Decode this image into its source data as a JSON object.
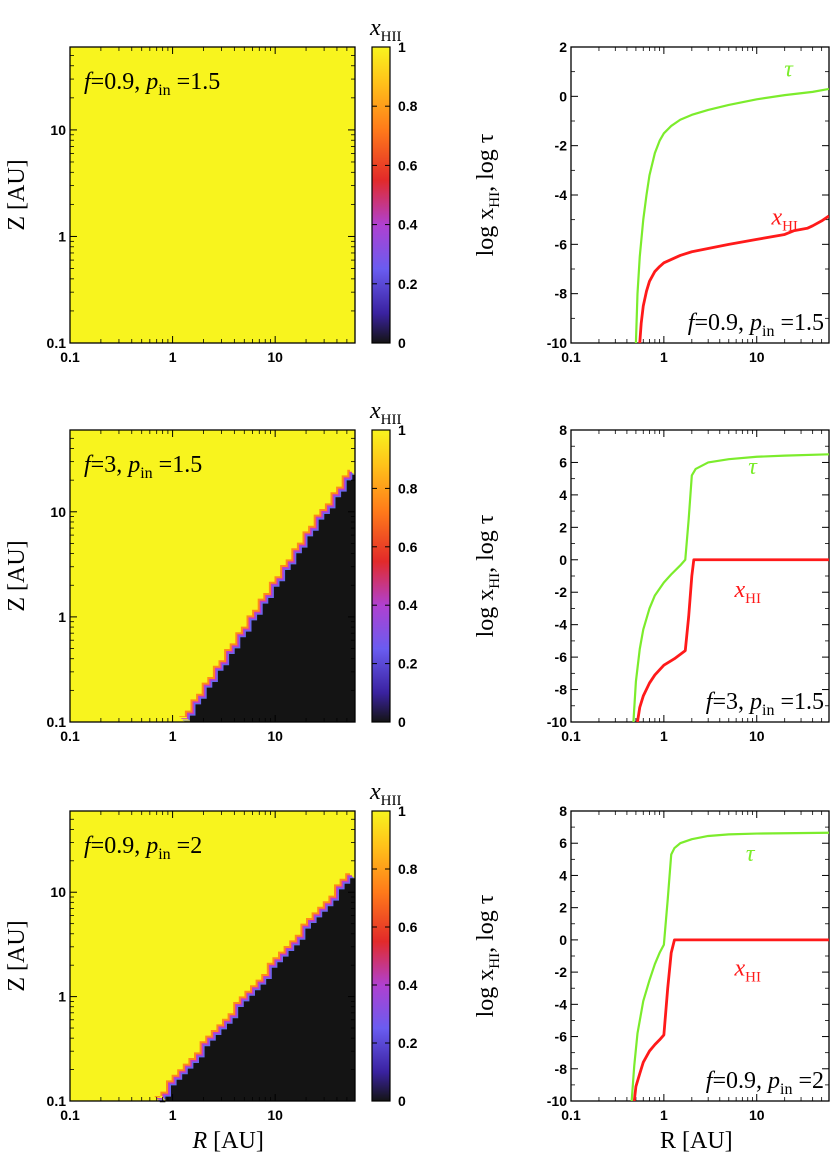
{
  "chart_data": [
    {
      "type": "heatmap",
      "panel": "left-top",
      "annotation": {
        "f_label": "f",
        "f_value": "=0.9, ",
        "p_label": "p",
        "p_sub": "in",
        "p_value": " =1.5"
      },
      "xlabel": "",
      "ylabel": "Z [AU]",
      "xlim": [
        0.1,
        60
      ],
      "ylim": [
        0.1,
        60
      ],
      "xscale": "log",
      "yscale": "log",
      "xticks": [
        "0.1",
        "1",
        "10"
      ],
      "yticks": [
        "0.1",
        "1",
        "10"
      ],
      "colorbar": {
        "label": "x",
        "label_sub": "HII",
        "ticks": [
          "1",
          "0.8",
          "0.6",
          "0.4",
          "0.2",
          "0"
        ]
      },
      "boundary": {
        "type": "none",
        "value_above": 1,
        "value_below": 1
      }
    },
    {
      "type": "heatmap",
      "panel": "left-middle",
      "annotation": {
        "f_label": "f",
        "f_value": "=3, ",
        "p_label": "p",
        "p_sub": "in",
        "p_value": " =1.5"
      },
      "xlabel": "",
      "ylabel": "Z [AU]",
      "xlim": [
        0.1,
        60
      ],
      "ylim": [
        0.1,
        60
      ],
      "xscale": "log",
      "yscale": "log",
      "xticks": [
        "0.1",
        "1",
        "10"
      ],
      "yticks": [
        "0.1",
        "1",
        "10"
      ],
      "colorbar": {
        "label": "x",
        "label_sub": "HII",
        "ticks": [
          "1",
          "0.8",
          "0.6",
          "0.4",
          "0.2",
          "0"
        ]
      },
      "boundary": {
        "type": "power",
        "r0": 1.3,
        "z0": 0.1,
        "slope": 1.45,
        "value_above": 1,
        "value_below": 0
      }
    },
    {
      "type": "heatmap",
      "panel": "left-bottom",
      "annotation": {
        "f_label": "f",
        "f_value": "=0.9, ",
        "p_label": "p",
        "p_sub": "in",
        "p_value": " =2"
      },
      "xlabel": "R [AU]",
      "ylabel": "Z [AU]",
      "xlim": [
        0.1,
        60
      ],
      "ylim": [
        0.1,
        60
      ],
      "xscale": "log",
      "yscale": "log",
      "xticks": [
        "0.1",
        "1",
        "10"
      ],
      "yticks": [
        "0.1",
        "1",
        "10"
      ],
      "colorbar": {
        "label": "x",
        "label_sub": "HII",
        "ticks": [
          "1",
          "0.8",
          "0.6",
          "0.4",
          "0.2",
          "0"
        ]
      },
      "boundary": {
        "type": "power",
        "r0": 0.75,
        "z0": 0.1,
        "slope": 1.15,
        "value_above": 1,
        "value_below": 0
      }
    },
    {
      "type": "line",
      "panel": "right-top",
      "annotation": {
        "f_label": "f",
        "f_value": "=0.9, ",
        "p_label": "p",
        "p_sub": "in",
        "p_value": " =1.5"
      },
      "xlabel": "",
      "ylabel": "log x",
      "ylabel_sub": "HI",
      "ylabel_tail": ", log τ",
      "xlim": [
        0.1,
        60
      ],
      "ylim": [
        -10,
        2
      ],
      "xscale": "log",
      "xticks": [
        "0.1",
        "1",
        "10"
      ],
      "yticks": [
        "2",
        "0",
        "-2",
        "-4",
        "-6",
        "-8",
        "-10"
      ],
      "series": [
        {
          "name": "τ",
          "color": "#7cec2c",
          "x": [
            0.5,
            0.52,
            0.55,
            0.6,
            0.65,
            0.7,
            0.8,
            0.9,
            1.0,
            1.2,
            1.5,
            2,
            3,
            5,
            10,
            20,
            40,
            60
          ],
          "y": [
            -10,
            -8,
            -6.5,
            -5,
            -4,
            -3.2,
            -2.3,
            -1.8,
            -1.5,
            -1.2,
            -0.95,
            -0.75,
            -0.55,
            -0.35,
            -0.12,
            0.05,
            0.18,
            0.3
          ]
        },
        {
          "name": "x",
          "name_sub": "HI",
          "color": "#ff1a1a",
          "x": [
            0.55,
            0.57,
            0.6,
            0.65,
            0.7,
            0.8,
            0.9,
            1.0,
            1.5,
            2,
            5,
            10,
            20,
            25,
            35,
            40,
            50,
            60
          ],
          "y": [
            -10,
            -9.2,
            -8.5,
            -7.9,
            -7.5,
            -7.1,
            -6.9,
            -6.75,
            -6.45,
            -6.3,
            -6.0,
            -5.8,
            -5.6,
            -5.45,
            -5.35,
            -5.25,
            -5.05,
            -4.85
          ]
        }
      ],
      "series_labels": [
        {
          "text": "τ",
          "sub": "",
          "color": "#7cec2c",
          "x": 22,
          "y": 0.8
        },
        {
          "text": "x",
          "sub": "HI",
          "color": "#ff1a1a",
          "x": 20,
          "y": -5.2
        }
      ]
    },
    {
      "type": "line",
      "panel": "right-middle",
      "annotation": {
        "f_label": "f",
        "f_value": "=3, ",
        "p_label": "p",
        "p_sub": "in",
        "p_value": " =1.5"
      },
      "xlabel": "",
      "ylabel": "log x",
      "ylabel_sub": "HI",
      "ylabel_tail": ", log τ",
      "xlim": [
        0.1,
        60
      ],
      "ylim": [
        -10,
        8
      ],
      "xscale": "log",
      "xticks": [
        "0.1",
        "1",
        "10"
      ],
      "yticks": [
        "8",
        "6",
        "4",
        "2",
        "0",
        "-2",
        "-4",
        "-6",
        "-8",
        "-10"
      ],
      "series": [
        {
          "name": "τ",
          "color": "#7cec2c",
          "x": [
            0.47,
            0.5,
            0.55,
            0.6,
            0.7,
            0.8,
            1.0,
            1.2,
            1.5,
            1.7,
            1.85,
            2.0,
            2.2,
            3,
            5,
            10,
            20,
            60
          ],
          "y": [
            -10,
            -7.5,
            -5.5,
            -4.3,
            -3.0,
            -2.2,
            -1.4,
            -0.9,
            -0.35,
            0,
            2.5,
            5.2,
            5.6,
            6.0,
            6.2,
            6.35,
            6.42,
            6.5
          ]
        },
        {
          "name": "x",
          "name_sub": "HI",
          "color": "#ff1a1a",
          "x": [
            0.52,
            0.55,
            0.6,
            0.7,
            0.8,
            1.0,
            1.3,
            1.7,
            1.85,
            2.0,
            2.1,
            5,
            10,
            20,
            60
          ],
          "y": [
            -10,
            -9.1,
            -8.4,
            -7.6,
            -7.1,
            -6.5,
            -6.1,
            -5.6,
            -3.5,
            -1.0,
            0,
            0,
            0,
            0,
            0
          ]
        }
      ],
      "series_labels": [
        {
          "text": "τ",
          "sub": "",
          "color": "#7cec2c",
          "x": 9,
          "y": 5.3
        },
        {
          "text": "x",
          "sub": "HI",
          "color": "#ff1a1a",
          "x": 8,
          "y": -2.3
        }
      ]
    },
    {
      "type": "line",
      "panel": "right-bottom",
      "annotation": {
        "f_label": "f",
        "f_value": "=0.9, ",
        "p_label": "p",
        "p_sub": "in",
        "p_value": " =2"
      },
      "xlabel": "R [AU]",
      "ylabel": "log x",
      "ylabel_sub": "HI",
      "ylabel_tail": ", log τ",
      "xlim": [
        0.1,
        60
      ],
      "ylim": [
        -10,
        8
      ],
      "xscale": "log",
      "xticks": [
        "0.1",
        "1",
        "10"
      ],
      "yticks": [
        "8",
        "6",
        "4",
        "2",
        "0",
        "-2",
        "-4",
        "-6",
        "-8",
        "-10"
      ],
      "series": [
        {
          "name": "τ",
          "color": "#7cec2c",
          "x": [
            0.45,
            0.48,
            0.52,
            0.6,
            0.7,
            0.8,
            0.9,
            1.0,
            1.1,
            1.2,
            1.3,
            1.5,
            2,
            3,
            5,
            10,
            20,
            60
          ],
          "y": [
            -10,
            -7.8,
            -5.8,
            -3.8,
            -2.5,
            -1.5,
            -0.8,
            -0.3,
            2.5,
            5.3,
            5.7,
            6.0,
            6.25,
            6.45,
            6.55,
            6.6,
            6.62,
            6.65
          ]
        },
        {
          "name": "x",
          "name_sub": "HI",
          "color": "#ff1a1a",
          "x": [
            0.48,
            0.5,
            0.55,
            0.6,
            0.7,
            0.8,
            0.9,
            1.0,
            1.1,
            1.2,
            1.3,
            3,
            10,
            60
          ],
          "y": [
            -10,
            -9.1,
            -8.3,
            -7.6,
            -6.9,
            -6.5,
            -6.2,
            -5.9,
            -3.0,
            -0.8,
            0,
            0,
            0,
            0
          ]
        }
      ],
      "series_labels": [
        {
          "text": "τ",
          "sub": "",
          "color": "#7cec2c",
          "x": 8.5,
          "y": 4.9
        },
        {
          "text": "x",
          "sub": "HI",
          "color": "#ff1a1a",
          "x": 8,
          "y": -2.2
        }
      ]
    }
  ]
}
